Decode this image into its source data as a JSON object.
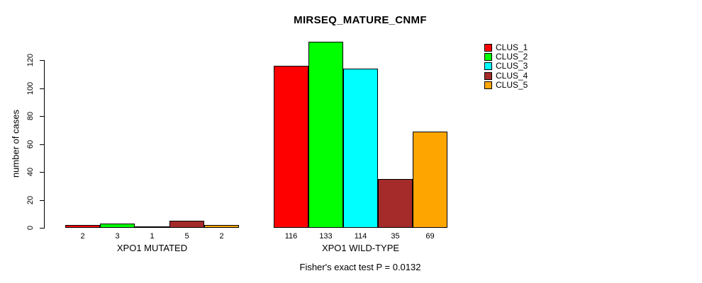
{
  "title": "MIRSEQ_MATURE_CNMF",
  "chart_data": {
    "type": "bar",
    "title": "MIRSEQ_MATURE_CNMF",
    "ylabel": "number of cases",
    "xlabel": "",
    "ylim": [
      0,
      120
    ],
    "yticks": [
      0,
      20,
      40,
      60,
      80,
      100,
      120
    ],
    "grid": false,
    "legend_position": "top-right",
    "bar_outline_color": "#000000",
    "categories": [
      "XPO1 MUTATED",
      "XPO1 WILD-TYPE"
    ],
    "series": [
      {
        "name": "CLUS_1",
        "color": "#FF0000",
        "values": [
          2,
          116
        ]
      },
      {
        "name": "CLUS_2",
        "color": "#00FF00",
        "values": [
          3,
          133
        ]
      },
      {
        "name": "CLUS_3",
        "color": "#00FFFF",
        "values": [
          1,
          114
        ]
      },
      {
        "name": "CLUS_4",
        "color": "#A52A2A",
        "values": [
          5,
          35
        ]
      },
      {
        "name": "CLUS_5",
        "color": "#FFA500",
        "values": [
          2,
          69
        ]
      }
    ],
    "bar_value_labels": [
      [
        "2",
        "3",
        "1",
        "5",
        "2"
      ],
      [
        "116",
        "133",
        "114",
        "35",
        "69"
      ]
    ],
    "annotation": "Fisher's exact test P = 0.0132"
  }
}
